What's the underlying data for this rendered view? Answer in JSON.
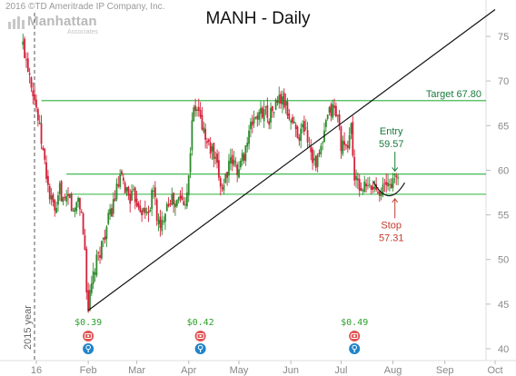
{
  "copyright": "2016 ©TD Ameritrade IP Company, Inc.",
  "logo": {
    "name": "Manhattan",
    "sub": "Associates"
  },
  "chart_data": {
    "type": "candlestick",
    "title": "MANH - Daily",
    "ylim": [
      40,
      78
    ],
    "yticks": [
      40,
      45,
      50,
      55,
      60,
      65,
      70,
      75
    ],
    "xticks": [
      {
        "label": "16",
        "day": 0
      },
      {
        "label": "Feb",
        "day": 31
      },
      {
        "label": "Mar",
        "day": 60
      },
      {
        "label": "Apr",
        "day": 91
      },
      {
        "label": "May",
        "day": 121
      },
      {
        "label": "Jun",
        "day": 152
      },
      {
        "label": "Jul",
        "day": 182
      },
      {
        "label": "Aug",
        "day": 213
      },
      {
        "label": "Sep",
        "day": 244
      },
      {
        "label": "Oct",
        "day": 274
      }
    ],
    "xlim": [
      -10,
      274
    ],
    "year_marker": {
      "label": "2015 year",
      "day": 0
    },
    "candle_anchors": [
      [
        -8,
        74
      ],
      [
        -4,
        71
      ],
      [
        0,
        67
      ],
      [
        4,
        62
      ],
      [
        8,
        57
      ],
      [
        12,
        55
      ],
      [
        14,
        58
      ],
      [
        17,
        56
      ],
      [
        20,
        57
      ],
      [
        22,
        55
      ],
      [
        25,
        57
      ],
      [
        27,
        55
      ],
      [
        29,
        51
      ],
      [
        30,
        47
      ],
      [
        31,
        44.5
      ],
      [
        33,
        47
      ],
      [
        35,
        49
      ],
      [
        38,
        51
      ],
      [
        41,
        53
      ],
      [
        44,
        55
      ],
      [
        47,
        57
      ],
      [
        50,
        59
      ],
      [
        53,
        58
      ],
      [
        56,
        57
      ],
      [
        59,
        57
      ],
      [
        62,
        56
      ],
      [
        65,
        55
      ],
      [
        68,
        56
      ],
      [
        70,
        58
      ],
      [
        72,
        55
      ],
      [
        74,
        53
      ],
      [
        77,
        56
      ],
      [
        80,
        57
      ],
      [
        83,
        56
      ],
      [
        86,
        57
      ],
      [
        88,
        56
      ],
      [
        91,
        59
      ],
      [
        93,
        66
      ],
      [
        96,
        67
      ],
      [
        99,
        65
      ],
      [
        102,
        63
      ],
      [
        105,
        62
      ],
      [
        108,
        60
      ],
      [
        111,
        58
      ],
      [
        114,
        60
      ],
      [
        117,
        61
      ],
      [
        121,
        60
      ],
      [
        124,
        62
      ],
      [
        127,
        64
      ],
      [
        130,
        66
      ],
      [
        133,
        66
      ],
      [
        136,
        67
      ],
      [
        139,
        66
      ],
      [
        142,
        67
      ],
      [
        145,
        68
      ],
      [
        148,
        67.5
      ],
      [
        151,
        66
      ],
      [
        154,
        65
      ],
      [
        157,
        64
      ],
      [
        160,
        65
      ],
      [
        163,
        63
      ],
      [
        166,
        61
      ],
      [
        168,
        61
      ],
      [
        171,
        63
      ],
      [
        174,
        66
      ],
      [
        177,
        67
      ],
      [
        180,
        66
      ],
      [
        182,
        63
      ],
      [
        185,
        62
      ],
      [
        188,
        65
      ],
      [
        190,
        59
      ],
      [
        193,
        58
      ],
      [
        196,
        58
      ],
      [
        199,
        58
      ],
      [
        202,
        58
      ],
      [
        205,
        58
      ],
      [
        208,
        58
      ],
      [
        211,
        58.5
      ],
      [
        214,
        59
      ],
      [
        217,
        59.5
      ]
    ],
    "levels": [
      {
        "name": "Target 67.80",
        "value": 67.8,
        "label": "Target 67.80"
      },
      {
        "name": "Entry",
        "value": 59.57
      },
      {
        "name": "Stop",
        "value": 57.31
      }
    ],
    "trendline": {
      "start": {
        "day": 31,
        "price": 44.3
      },
      "end": {
        "day": 274,
        "price": 78
      }
    },
    "curve": {
      "from_day": 201,
      "to_day": 220,
      "from_price": 58.8,
      "to_price": 58.6,
      "low_price": 56.6
    },
    "annotations": [
      {
        "name": "entry",
        "text": "Entry",
        "value_text": "59.57",
        "day": 212,
        "price": 64.0,
        "color": "#1a7a3c",
        "arrow_to_price": 59.9
      },
      {
        "name": "stop",
        "text": "Stop",
        "value_text": "57.31",
        "day": 212,
        "price": 53.5,
        "color": "#c0392b",
        "arrow_to_price": 56.8
      }
    ],
    "dividends": [
      {
        "label": "$0.39",
        "day": 31
      },
      {
        "label": "$0.42",
        "day": 98
      },
      {
        "label": "$0.49",
        "day": 190
      }
    ],
    "colors": {
      "up": "#2e8b2e",
      "down": "#d3223a",
      "level": "#2bb03e",
      "trend": "#111111",
      "axis_text": "#888888",
      "dividend_text": "#2aa02a",
      "dividend_icon": "#e05252",
      "earnings_icon": "#1f84c8"
    },
    "grid": false,
    "legend": "none"
  }
}
